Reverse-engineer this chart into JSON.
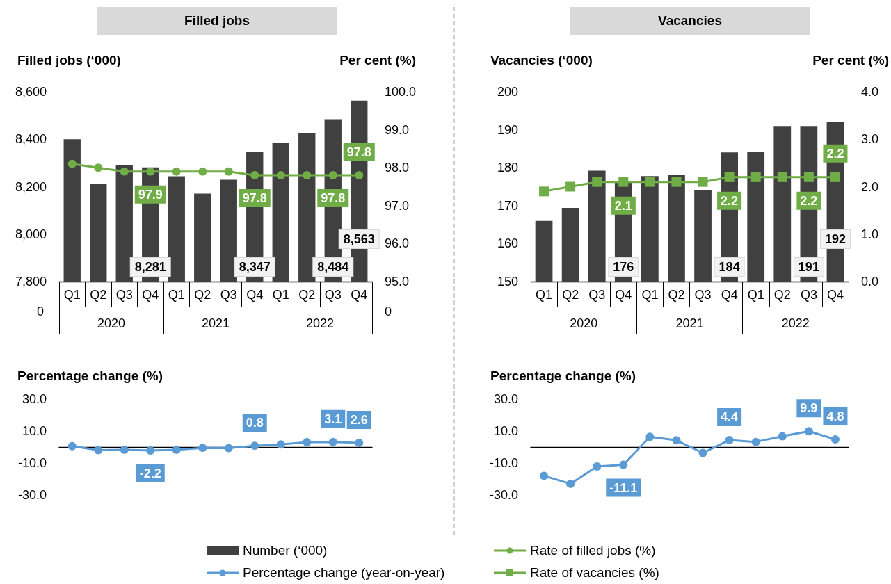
{
  "chart_data": [
    {
      "type": "bar",
      "title": "Filled jobs",
      "ylabel": "Filled jobs (‘000)",
      "y2label": "Per cent (%)",
      "legend": "bottom",
      "categories": [
        "Q1",
        "Q2",
        "Q3",
        "Q4",
        "Q1",
        "Q2",
        "Q3",
        "Q4",
        "Q1",
        "Q2",
        "Q3",
        "Q4"
      ],
      "annotations": [
        "2020",
        "2021",
        "2022",
        "0",
        "0"
      ],
      "ylim": [
        7800,
        8600
      ],
      "yticks": [
        {
          "value": 7800,
          "label": "7,800"
        },
        {
          "value": 8000,
          "label": "8,000"
        },
        {
          "value": 8200,
          "label": "8,200"
        },
        {
          "value": 8400,
          "label": "8,400"
        },
        {
          "value": 8600,
          "label": "8,600"
        }
      ],
      "y2lim": [
        95,
        100
      ],
      "y2ticks": [
        {
          "value": 95,
          "label": "95.0"
        },
        {
          "value": 96,
          "label": "96.0"
        },
        {
          "value": 97,
          "label": "97.0"
        },
        {
          "value": 98,
          "label": "98.0"
        },
        {
          "value": 99,
          "label": "99.0"
        },
        {
          "value": 100,
          "label": "100.0"
        }
      ],
      "series": [
        {
          "name": "Number (‘000)",
          "color": "#404040",
          "values": [
            8400,
            8212,
            8290,
            8281,
            8244,
            8171,
            8229,
            8347,
            8385,
            8426,
            8484,
            8563
          ],
          "value_labels": [
            null,
            null,
            null,
            "8,281",
            null,
            null,
            null,
            "8,347",
            null,
            null,
            "8,484",
            "8,563"
          ]
        },
        {
          "type": "line",
          "axis": "y2",
          "name": "Rate of filled jobs (%)",
          "color": "#70ad47",
          "marker": "circle",
          "values": [
            98.1,
            98.0,
            97.9,
            97.9,
            97.9,
            97.9,
            97.9,
            97.8,
            97.8,
            97.8,
            97.8,
            97.8
          ],
          "value_labels": [
            null,
            null,
            null,
            "97.9",
            null,
            null,
            null,
            "97.8",
            null,
            null,
            "97.8",
            "97.8"
          ]
        }
      ]
    },
    {
      "type": "bar",
      "title": "Vacancies",
      "ylabel": "Vacancies (‘000)",
      "y2label": "Per cent (%)",
      "legend": "bottom",
      "categories": [
        "Q1",
        "Q2",
        "Q3",
        "Q4",
        "Q1",
        "Q2",
        "Q3",
        "Q4",
        "Q1",
        "Q2",
        "Q3",
        "Q4"
      ],
      "annotations": [
        "2020",
        "2021",
        "2022"
      ],
      "ylim": [
        150,
        200
      ],
      "yticks": [
        150,
        160,
        170,
        180,
        190,
        200
      ],
      "y2lim": [
        0,
        4
      ],
      "y2ticks": [
        {
          "value": 0,
          "label": "0.0"
        },
        {
          "value": 1,
          "label": "1.0"
        },
        {
          "value": 2,
          "label": "2.0"
        },
        {
          "value": 3,
          "label": "3.0"
        },
        {
          "value": 4,
          "label": "4.0"
        }
      ],
      "series": [
        {
          "color": "#404040",
          "values": [
            166,
            169.4,
            179.2,
            176,
            177.8,
            178,
            174,
            184,
            184.2,
            191,
            191,
            192
          ],
          "value_labels": [
            null,
            null,
            null,
            "176",
            null,
            null,
            null,
            "184",
            null,
            null,
            "191",
            "192"
          ]
        },
        {
          "type": "line",
          "axis": "y2",
          "name": "Rate of vacancies (%)",
          "color": "#70ad47",
          "marker": "square",
          "values": [
            1.9,
            2.0,
            2.1,
            2.1,
            2.1,
            2.1,
            2.1,
            2.2,
            2.2,
            2.2,
            2.2,
            2.2
          ],
          "value_labels": [
            null,
            null,
            null,
            "2.1",
            null,
            null,
            null,
            "2.2",
            null,
            null,
            "2.2",
            "2.2"
          ]
        }
      ]
    },
    {
      "type": "line",
      "ylabel": "Percentage change (%)",
      "legend": "bottom",
      "tick_labels": "y",
      "categories": [
        null,
        null,
        null,
        null,
        null,
        null,
        null,
        null,
        null,
        null,
        null,
        null
      ],
      "ylim": [
        -30,
        30
      ],
      "yticks": [
        {
          "value": -30,
          "label": "-30.0"
        },
        {
          "value": -10,
          "label": "-10.0"
        },
        {
          "value": 10,
          "label": "10.0"
        },
        {
          "value": 30,
          "label": "30.0"
        }
      ],
      "series": [
        {
          "name": "Percentage change (year-on-year)",
          "color": "#5b9bd5",
          "marker": "circle",
          "values": [
            0.5,
            -2.0,
            -1.7,
            -2.2,
            -1.7,
            -0.5,
            -0.7,
            0.8,
            1.6,
            3.0,
            3.1,
            2.6
          ],
          "value_labels": [
            null,
            null,
            null,
            "-2.2",
            null,
            null,
            null,
            "0.8",
            null,
            null,
            "3.1",
            "2.6"
          ]
        }
      ]
    },
    {
      "type": "line",
      "ylabel": "Percentage change (%)",
      "tick_labels": "y",
      "categories": [
        null,
        null,
        null,
        null,
        null,
        null,
        null,
        null,
        null,
        null,
        null,
        null
      ],
      "ylim": [
        -30,
        30
      ],
      "yticks": [
        {
          "value": -30,
          "label": "-30.0"
        },
        {
          "value": -10,
          "label": "-10.0"
        },
        {
          "value": 10,
          "label": "10.0"
        },
        {
          "value": 30,
          "label": "30.0"
        }
      ],
      "series": [
        {
          "color": "#5b9bd5",
          "marker": "circle",
          "values": [
            -18,
            -23,
            -12.2,
            -11.1,
            6.4,
            4.2,
            -3.7,
            4.4,
            3.2,
            6.7,
            9.9,
            4.8
          ],
          "value_labels": [
            null,
            null,
            null,
            "-11.1",
            null,
            null,
            null,
            "4.4",
            null,
            null,
            "9.9",
            "4.8"
          ]
        }
      ]
    }
  ]
}
